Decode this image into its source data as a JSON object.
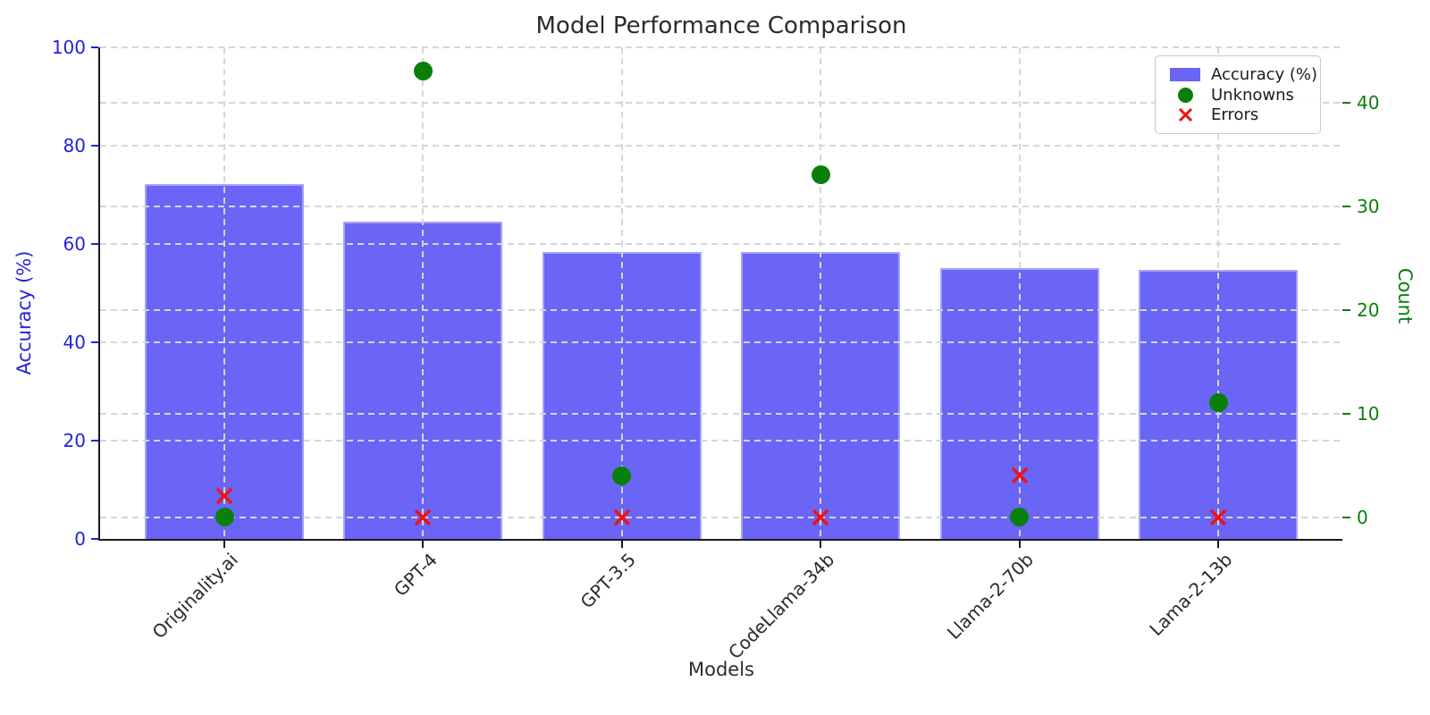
{
  "chart_data": {
    "type": "bar",
    "title": "Model Performance Comparison",
    "xlabel": "Models",
    "ylabel_left": "Accuracy (%)",
    "ylabel_right": "Count",
    "categories": [
      "Originality.ai",
      "GPT-4",
      "GPT-3.5",
      "CodeLlama-34b",
      "Llama-2-70b",
      "Lama-2-13b"
    ],
    "series": [
      {
        "name": "Accuracy (%)",
        "type": "bar",
        "axis": "left",
        "marker": "rect",
        "color": "#6a64f7",
        "values": [
          72.2,
          64.5,
          58.4,
          58.4,
          55.1,
          54.8
        ]
      },
      {
        "name": "Unknowns",
        "type": "scatter",
        "axis": "right",
        "marker": "circle",
        "color": "#0a800a",
        "values": [
          0,
          43,
          4,
          33,
          0,
          11
        ]
      },
      {
        "name": "Errors",
        "type": "scatter",
        "axis": "right",
        "marker": "x",
        "color": "#f11111",
        "values": [
          2,
          0,
          0,
          0,
          4,
          0
        ]
      }
    ],
    "left_axis": {
      "label": "Accuracy (%)",
      "color": "#2222dd",
      "ticks": [
        0,
        20,
        40,
        60,
        80,
        100
      ],
      "range": [
        0,
        100
      ]
    },
    "right_axis": {
      "label": "Count",
      "color": "#0a800a",
      "ticks": [
        0,
        10,
        20,
        30,
        40
      ],
      "range": [
        -2.11,
        45.32
      ]
    },
    "legend": {
      "position": "upper right",
      "items": [
        "Accuracy (%)",
        "Unknowns",
        "Errors"
      ]
    },
    "grid": true,
    "colors": {
      "bar": "#6a64f7",
      "unknowns": "#0a800a",
      "errors": "#f11111",
      "left_axis_text": "#2222dd",
      "right_axis_text": "#0a800a",
      "grid": "#d6d6d6",
      "text": "#2b2b2b"
    }
  }
}
